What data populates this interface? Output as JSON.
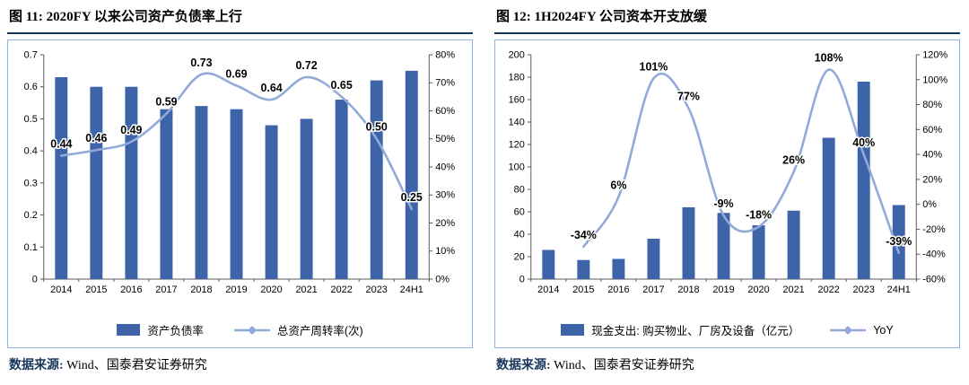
{
  "theme": {
    "bar_color": "#3D63A8",
    "line_color": "#92A9DA",
    "box_border_color": "#8EB4E3",
    "title_underline_color": "#17375D",
    "source_label_color": "#17375D"
  },
  "figures": [
    {
      "title": "图 11: 2020FY 以来公司资产负债率上行",
      "source_label": "数据来源:",
      "source_text": " Wind、国泰君安证券研究"
    },
    {
      "title": "图 12: 1H2024FY 公司资本开支放缓",
      "source_label": "数据来源:",
      "source_text": " Wind、国泰君安证券研究"
    }
  ],
  "chart_data": [
    {
      "type": "bar+line",
      "title": "2020FY 以来公司资产负债率上行",
      "categories": [
        "2014",
        "2015",
        "2016",
        "2017",
        "2018",
        "2019",
        "2020",
        "2021",
        "2022",
        "2023",
        "24H1"
      ],
      "left_axis": {
        "min": 0,
        "max": 0.7,
        "step": 0.1,
        "decimals": 1,
        "suffix": ""
      },
      "right_axis": {
        "min": 0,
        "max": 80,
        "step": 10,
        "decimals": 0,
        "suffix": "%"
      },
      "grid": false,
      "legend_position": "bottom",
      "series": [
        {
          "name": "资产负债率",
          "type": "bar",
          "axis": "left",
          "values": [
            0.63,
            0.6,
            0.6,
            0.53,
            0.54,
            0.53,
            0.48,
            0.5,
            0.56,
            0.62,
            0.65
          ]
        },
        {
          "name": "总资产周转率(次)",
          "type": "line",
          "axis": "right",
          "value_scale": 100,
          "values": [
            0.44,
            0.46,
            0.49,
            0.59,
            0.73,
            0.69,
            0.64,
            0.72,
            0.65,
            0.5,
            0.25
          ],
          "labels": [
            "0.44",
            "0.46",
            "0.49",
            "0.59",
            "0.73",
            "0.69",
            "0.64",
            "0.72",
            "0.65",
            "0.50",
            "0.25"
          ]
        }
      ]
    },
    {
      "type": "bar+line",
      "title": "1H2024FY 公司资本开支放缓",
      "categories": [
        "2014",
        "2015",
        "2016",
        "2017",
        "2018",
        "2019",
        "2020",
        "2021",
        "2022",
        "2023",
        "24H1"
      ],
      "left_axis": {
        "min": 0,
        "max": 200,
        "step": 20,
        "decimals": 0,
        "suffix": ""
      },
      "right_axis": {
        "min": -60,
        "max": 120,
        "step": 20,
        "decimals": 0,
        "suffix": "%"
      },
      "grid": false,
      "legend_position": "bottom",
      "series": [
        {
          "name": "现金支出: 购买物业、厂房及设备（亿元）",
          "type": "bar",
          "axis": "left",
          "values": [
            26,
            17,
            18,
            36,
            64,
            59,
            48,
            61,
            126,
            176,
            66
          ]
        },
        {
          "name": "YoY",
          "type": "line",
          "axis": "right",
          "value_scale": 1,
          "values": [
            null,
            -34,
            6,
            101,
            77,
            -9,
            -18,
            26,
            108,
            40,
            -39
          ],
          "labels": [
            "",
            "-34%",
            "6%",
            "101%",
            "77%",
            "-9%",
            "-18%",
            "26%",
            "108%",
            "40%",
            "-39%"
          ]
        }
      ]
    }
  ]
}
